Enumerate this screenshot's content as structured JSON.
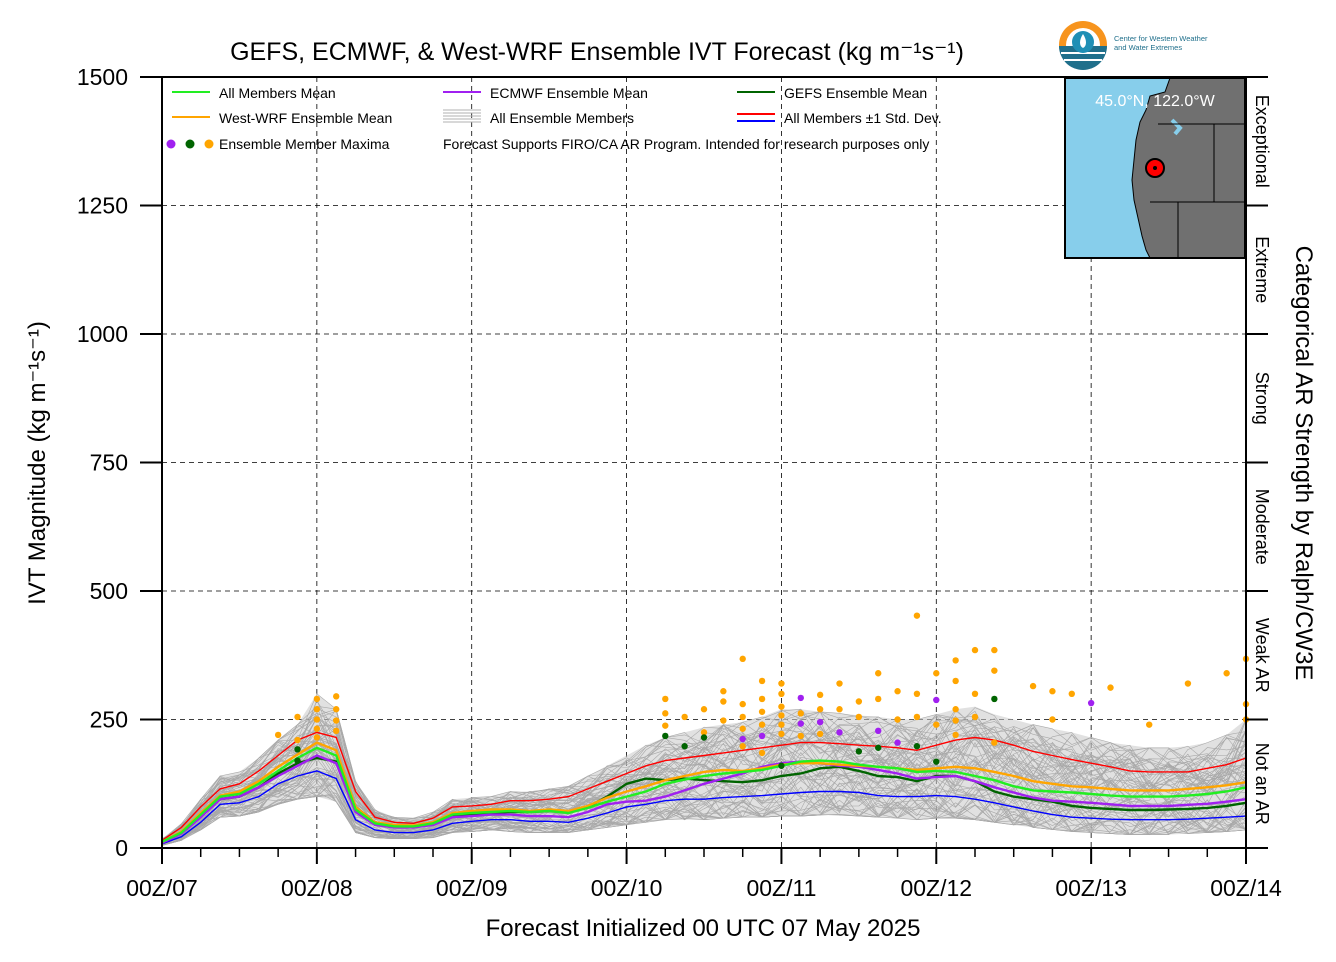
{
  "chart_data": {
    "type": "line",
    "title": "GEFS, ECMWF, & West-WRF Ensemble IVT Forecast (kg m⁻¹s⁻¹)",
    "xlabel": "Forecast Initialized 00 UTC 07 May 2025",
    "ylabel": "IVT Magnitude (kg m⁻¹s⁻¹)",
    "right_label": "Categorical AR Strength by Ralph/CW3E",
    "xlim": [
      0,
      168
    ],
    "ylim": [
      0,
      1500
    ],
    "x_ticks": [
      0,
      24,
      48,
      72,
      96,
      120,
      144,
      168
    ],
    "x_tick_labels": [
      "00Z/07",
      "00Z/08",
      "00Z/09",
      "00Z/10",
      "00Z/11",
      "00Z/12",
      "00Z/13",
      "00Z/14"
    ],
    "y_ticks": [
      0,
      250,
      500,
      750,
      1000,
      1250,
      1500
    ],
    "y_tick_labels": [
      "0",
      "250",
      "500",
      "750",
      "1000",
      "1250",
      "1500"
    ],
    "grid": true,
    "categories_ar": [
      {
        "label": "Not an AR",
        "from": 0,
        "to": 250
      },
      {
        "label": "Weak AR",
        "from": 250,
        "to": 500
      },
      {
        "label": "Moderate",
        "from": 500,
        "to": 750
      },
      {
        "label": "Strong",
        "from": 750,
        "to": 1000
      },
      {
        "label": "Extreme",
        "from": 1000,
        "to": 1250
      },
      {
        "label": "Exceptional",
        "from": 1250,
        "to": 1500
      }
    ],
    "legend": [
      {
        "label": "All Members Mean",
        "color": "#22ee22",
        "kind": "line"
      },
      {
        "label": "West-WRF Ensemble Mean",
        "color": "#ffa500",
        "kind": "line"
      },
      {
        "label": "Ensemble Member Maxima",
        "colors": [
          "#a020f0",
          "#006400",
          "#ffa500"
        ],
        "kind": "dots"
      },
      {
        "label": "ECMWF Ensemble Mean",
        "color": "#a020f0",
        "kind": "line"
      },
      {
        "label": "All Ensemble Members",
        "color": "#b0b0b0",
        "kind": "multi"
      },
      {
        "label": "GEFS Ensemble Mean",
        "color": "#006400",
        "kind": "line"
      },
      {
        "label": "All Members ±1 Std. Dev.",
        "colors": [
          "#ff0000",
          "#0000ff"
        ],
        "kind": "pair"
      }
    ],
    "note": "Forecast Supports FIRO/CA AR Program. Intended for research purposes only",
    "x": [
      0,
      3,
      6,
      9,
      12,
      15,
      18,
      21,
      24,
      27,
      30,
      33,
      36,
      39,
      42,
      45,
      48,
      51,
      54,
      57,
      60,
      63,
      66,
      69,
      72,
      75,
      78,
      81,
      84,
      87,
      90,
      93,
      96,
      99,
      102,
      105,
      108,
      111,
      114,
      117,
      120,
      123,
      126,
      129,
      132,
      135,
      138,
      141,
      144,
      147,
      150,
      153,
      156,
      159,
      162,
      165,
      168
    ],
    "series": [
      {
        "name": "All Members Mean",
        "color": "#22ee22",
        "values": [
          12,
          30,
          65,
          100,
          105,
          125,
          150,
          175,
          195,
          180,
          75,
          48,
          42,
          42,
          48,
          65,
          68,
          70,
          72,
          70,
          72,
          68,
          78,
          90,
          100,
          110,
          125,
          133,
          140,
          145,
          148,
          152,
          160,
          168,
          170,
          168,
          162,
          158,
          155,
          148,
          150,
          148,
          140,
          132,
          120,
          112,
          110,
          108,
          105,
          102,
          100,
          100,
          100,
          102,
          105,
          110,
          118
        ]
      },
      {
        "name": "West-WRF Ensemble Mean",
        "color": "#ffa500",
        "values": [
          12,
          32,
          68,
          102,
          110,
          130,
          158,
          182,
          205,
          190,
          80,
          50,
          45,
          44,
          50,
          68,
          72,
          75,
          75,
          72,
          75,
          72,
          82,
          98,
          110,
          120,
          132,
          140,
          148,
          152,
          150,
          155,
          162,
          165,
          165,
          162,
          160,
          158,
          155,
          152,
          155,
          158,
          155,
          148,
          140,
          130,
          125,
          120,
          118,
          115,
          112,
          112,
          112,
          115,
          118,
          122,
          128
        ]
      },
      {
        "name": "ECMWF Ensemble Mean",
        "color": "#a020f0",
        "values": [
          10,
          28,
          60,
          95,
          100,
          118,
          140,
          160,
          180,
          165,
          70,
          45,
          40,
          40,
          45,
          60,
          62,
          65,
          65,
          62,
          62,
          60,
          70,
          85,
          90,
          92,
          100,
          112,
          125,
          135,
          145,
          158,
          165,
          168,
          165,
          160,
          158,
          152,
          145,
          135,
          138,
          140,
          130,
          118,
          108,
          98,
          92,
          90,
          88,
          85,
          82,
          82,
          82,
          84,
          86,
          90,
          95
        ]
      },
      {
        "name": "GEFS Ensemble Mean",
        "color": "#006400",
        "values": [
          12,
          30,
          62,
          95,
          100,
          118,
          145,
          165,
          175,
          168,
          80,
          50,
          43,
          42,
          48,
          62,
          65,
          68,
          70,
          70,
          72,
          70,
          80,
          100,
          125,
          135,
          132,
          135,
          132,
          130,
          128,
          132,
          140,
          145,
          155,
          158,
          150,
          140,
          138,
          130,
          140,
          140,
          130,
          110,
          100,
          95,
          90,
          82,
          78,
          76,
          74,
          74,
          75,
          76,
          78,
          82,
          88
        ]
      },
      {
        "name": "All Members +1 Std. Dev.",
        "color": "#ff0000",
        "values": [
          15,
          40,
          80,
          115,
          125,
          150,
          180,
          210,
          225,
          215,
          110,
          60,
          50,
          48,
          58,
          80,
          82,
          85,
          92,
          92,
          95,
          100,
          115,
          130,
          145,
          160,
          170,
          175,
          180,
          185,
          190,
          195,
          200,
          205,
          205,
          203,
          200,
          198,
          195,
          190,
          200,
          210,
          215,
          210,
          200,
          188,
          180,
          172,
          165,
          158,
          150,
          148,
          148,
          148,
          155,
          162,
          175
        ]
      },
      {
        "name": "All Members -1 Std. Dev.",
        "color": "#0000ff",
        "values": [
          8,
          22,
          50,
          85,
          88,
          100,
          125,
          140,
          150,
          135,
          55,
          35,
          30,
          30,
          35,
          48,
          52,
          55,
          55,
          52,
          52,
          50,
          58,
          68,
          80,
          85,
          92,
          95,
          95,
          98,
          100,
          102,
          105,
          108,
          110,
          110,
          108,
          102,
          100,
          100,
          102,
          100,
          95,
          88,
          80,
          72,
          65,
          60,
          58,
          56,
          55,
          55,
          55,
          56,
          58,
          60,
          62
        ]
      }
    ],
    "members_envelope": {
      "upper": [
        18,
        48,
        95,
        140,
        148,
        175,
        210,
        240,
        300,
        270,
        130,
        75,
        60,
        58,
        70,
        95,
        98,
        100,
        110,
        110,
        115,
        120,
        140,
        160,
        180,
        200,
        215,
        225,
        235,
        240,
        245,
        255,
        270,
        270,
        265,
        262,
        258,
        255,
        250,
        250,
        260,
        270,
        275,
        260,
        250,
        240,
        232,
        225,
        215,
        205,
        200,
        195,
        195,
        198,
        205,
        220,
        250
      ],
      "lower": [
        5,
        15,
        35,
        60,
        62,
        70,
        85,
        95,
        100,
        90,
        30,
        20,
        18,
        18,
        20,
        30,
        32,
        35,
        32,
        30,
        30,
        30,
        35,
        40,
        45,
        50,
        55,
        55,
        55,
        58,
        60,
        60,
        62,
        62,
        64,
        64,
        62,
        60,
        58,
        55,
        58,
        58,
        55,
        50,
        45,
        40,
        36,
        32,
        30,
        28,
        26,
        26,
        26,
        28,
        30,
        32,
        35
      ]
    },
    "member_maxima": [
      {
        "x": 18,
        "y": 220,
        "color": "#ffa500"
      },
      {
        "x": 21,
        "y": 192,
        "color": "#006400"
      },
      {
        "x": 21,
        "y": 170,
        "color": "#006400"
      },
      {
        "x": 21,
        "y": 210,
        "color": "#ffa500"
      },
      {
        "x": 21,
        "y": 255,
        "color": "#ffa500"
      },
      {
        "x": 24,
        "y": 290,
        "color": "#ffa500"
      },
      {
        "x": 24,
        "y": 270,
        "color": "#ffa500"
      },
      {
        "x": 24,
        "y": 250,
        "color": "#ffa500"
      },
      {
        "x": 24,
        "y": 232,
        "color": "#ffa500"
      },
      {
        "x": 24,
        "y": 215,
        "color": "#ffa500"
      },
      {
        "x": 27,
        "y": 295,
        "color": "#ffa500"
      },
      {
        "x": 27,
        "y": 270,
        "color": "#ffa500"
      },
      {
        "x": 27,
        "y": 248,
        "color": "#ffa500"
      },
      {
        "x": 27,
        "y": 228,
        "color": "#ffa500"
      },
      {
        "x": 78,
        "y": 290,
        "color": "#ffa500"
      },
      {
        "x": 78,
        "y": 262,
        "color": "#ffa500"
      },
      {
        "x": 78,
        "y": 238,
        "color": "#ffa500"
      },
      {
        "x": 78,
        "y": 218,
        "color": "#006400"
      },
      {
        "x": 81,
        "y": 255,
        "color": "#ffa500"
      },
      {
        "x": 81,
        "y": 198,
        "color": "#006400"
      },
      {
        "x": 84,
        "y": 270,
        "color": "#ffa500"
      },
      {
        "x": 84,
        "y": 225,
        "color": "#ffa500"
      },
      {
        "x": 84,
        "y": 215,
        "color": "#006400"
      },
      {
        "x": 87,
        "y": 305,
        "color": "#ffa500"
      },
      {
        "x": 87,
        "y": 285,
        "color": "#ffa500"
      },
      {
        "x": 87,
        "y": 248,
        "color": "#ffa500"
      },
      {
        "x": 90,
        "y": 368,
        "color": "#ffa500"
      },
      {
        "x": 90,
        "y": 280,
        "color": "#ffa500"
      },
      {
        "x": 90,
        "y": 255,
        "color": "#ffa500"
      },
      {
        "x": 90,
        "y": 232,
        "color": "#ffa500"
      },
      {
        "x": 90,
        "y": 212,
        "color": "#a020f0"
      },
      {
        "x": 90,
        "y": 198,
        "color": "#ffa500"
      },
      {
        "x": 93,
        "y": 325,
        "color": "#ffa500"
      },
      {
        "x": 93,
        "y": 290,
        "color": "#ffa500"
      },
      {
        "x": 93,
        "y": 265,
        "color": "#ffa500"
      },
      {
        "x": 93,
        "y": 240,
        "color": "#ffa500"
      },
      {
        "x": 93,
        "y": 218,
        "color": "#a020f0"
      },
      {
        "x": 93,
        "y": 185,
        "color": "#ffa500"
      },
      {
        "x": 96,
        "y": 320,
        "color": "#ffa500"
      },
      {
        "x": 96,
        "y": 300,
        "color": "#ffa500"
      },
      {
        "x": 96,
        "y": 275,
        "color": "#ffa500"
      },
      {
        "x": 96,
        "y": 258,
        "color": "#ffa500"
      },
      {
        "x": 96,
        "y": 240,
        "color": "#ffa500"
      },
      {
        "x": 96,
        "y": 222,
        "color": "#ffa500"
      },
      {
        "x": 96,
        "y": 160,
        "color": "#006400"
      },
      {
        "x": 99,
        "y": 292,
        "color": "#a020f0"
      },
      {
        "x": 99,
        "y": 262,
        "color": "#ffa500"
      },
      {
        "x": 99,
        "y": 242,
        "color": "#a020f0"
      },
      {
        "x": 99,
        "y": 218,
        "color": "#ffa500"
      },
      {
        "x": 102,
        "y": 298,
        "color": "#ffa500"
      },
      {
        "x": 102,
        "y": 270,
        "color": "#ffa500"
      },
      {
        "x": 102,
        "y": 245,
        "color": "#a020f0"
      },
      {
        "x": 102,
        "y": 222,
        "color": "#ffa500"
      },
      {
        "x": 105,
        "y": 320,
        "color": "#ffa500"
      },
      {
        "x": 105,
        "y": 270,
        "color": "#ffa500"
      },
      {
        "x": 105,
        "y": 225,
        "color": "#a020f0"
      },
      {
        "x": 108,
        "y": 285,
        "color": "#ffa500"
      },
      {
        "x": 108,
        "y": 255,
        "color": "#ffa500"
      },
      {
        "x": 108,
        "y": 188,
        "color": "#006400"
      },
      {
        "x": 111,
        "y": 340,
        "color": "#ffa500"
      },
      {
        "x": 111,
        "y": 290,
        "color": "#ffa500"
      },
      {
        "x": 111,
        "y": 228,
        "color": "#a020f0"
      },
      {
        "x": 111,
        "y": 195,
        "color": "#006400"
      },
      {
        "x": 114,
        "y": 305,
        "color": "#ffa500"
      },
      {
        "x": 114,
        "y": 250,
        "color": "#ffa500"
      },
      {
        "x": 114,
        "y": 205,
        "color": "#a020f0"
      },
      {
        "x": 117,
        "y": 452,
        "color": "#ffa500"
      },
      {
        "x": 117,
        "y": 300,
        "color": "#ffa500"
      },
      {
        "x": 117,
        "y": 255,
        "color": "#ffa500"
      },
      {
        "x": 117,
        "y": 198,
        "color": "#006400"
      },
      {
        "x": 120,
        "y": 340,
        "color": "#ffa500"
      },
      {
        "x": 120,
        "y": 288,
        "color": "#a020f0"
      },
      {
        "x": 120,
        "y": 240,
        "color": "#ffa500"
      },
      {
        "x": 120,
        "y": 168,
        "color": "#006400"
      },
      {
        "x": 123,
        "y": 365,
        "color": "#ffa500"
      },
      {
        "x": 123,
        "y": 325,
        "color": "#ffa500"
      },
      {
        "x": 123,
        "y": 270,
        "color": "#ffa500"
      },
      {
        "x": 123,
        "y": 248,
        "color": "#ffa500"
      },
      {
        "x": 123,
        "y": 220,
        "color": "#ffa500"
      },
      {
        "x": 126,
        "y": 385,
        "color": "#ffa500"
      },
      {
        "x": 126,
        "y": 300,
        "color": "#ffa500"
      },
      {
        "x": 126,
        "y": 255,
        "color": "#ffa500"
      },
      {
        "x": 129,
        "y": 385,
        "color": "#ffa500"
      },
      {
        "x": 129,
        "y": 345,
        "color": "#ffa500"
      },
      {
        "x": 129,
        "y": 290,
        "color": "#006400"
      },
      {
        "x": 129,
        "y": 205,
        "color": "#ffa500"
      },
      {
        "x": 135,
        "y": 315,
        "color": "#ffa500"
      },
      {
        "x": 138,
        "y": 305,
        "color": "#ffa500"
      },
      {
        "x": 138,
        "y": 250,
        "color": "#ffa500"
      },
      {
        "x": 141,
        "y": 300,
        "color": "#ffa500"
      },
      {
        "x": 144,
        "y": 282,
        "color": "#a020f0"
      },
      {
        "x": 147,
        "y": 312,
        "color": "#ffa500"
      },
      {
        "x": 153,
        "y": 240,
        "color": "#ffa500"
      },
      {
        "x": 159,
        "y": 320,
        "color": "#ffa500"
      },
      {
        "x": 165,
        "y": 340,
        "color": "#ffa500"
      },
      {
        "x": 168,
        "y": 368,
        "color": "#ffa500"
      },
      {
        "x": 168,
        "y": 280,
        "color": "#ffa500"
      },
      {
        "x": 168,
        "y": 250,
        "color": "#ffa500"
      }
    ],
    "inset_map": {
      "label": "45.0°N, 122.0°W",
      "ocean_color": "#87ceeb",
      "land_color": "#707070"
    },
    "logo_text": [
      "Center for Western Weather",
      "and Water Extremes"
    ]
  }
}
